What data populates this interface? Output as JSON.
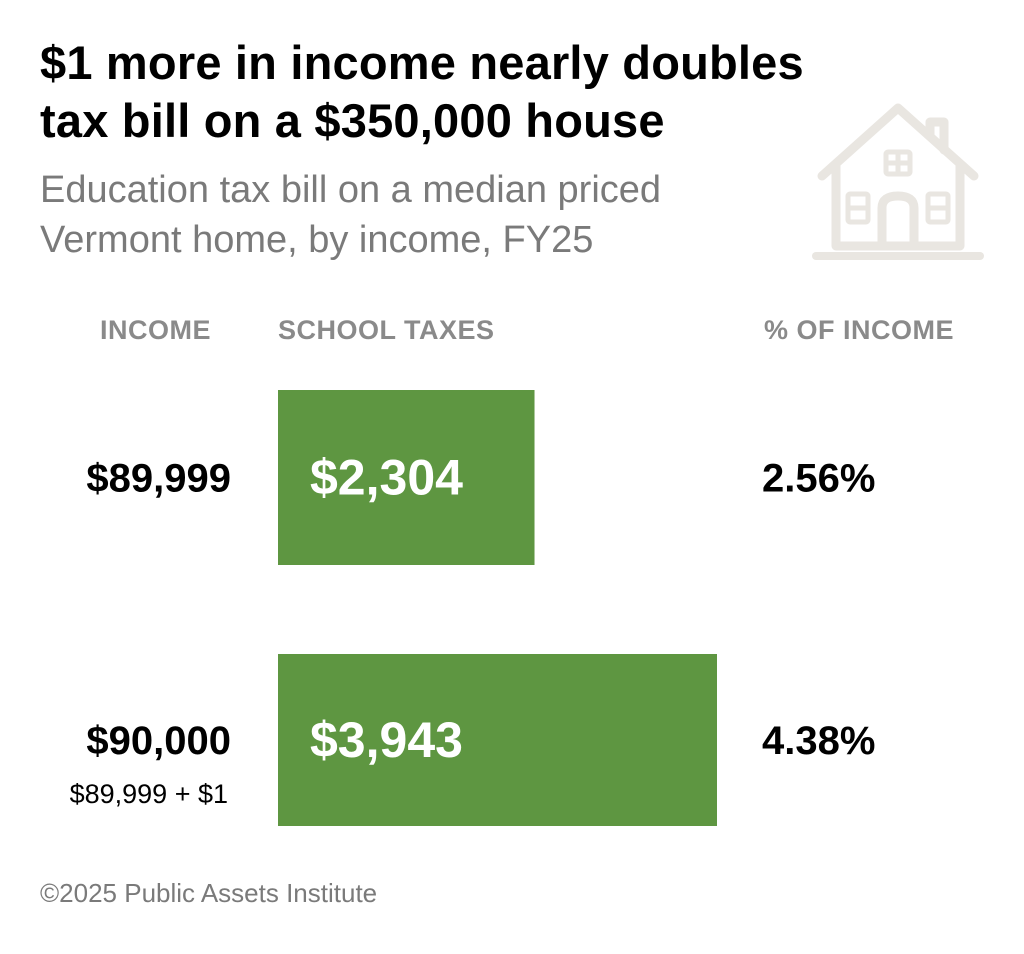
{
  "title_line1": "$1 more in income nearly doubles",
  "title_line2": "tax bill on a $350,000 house",
  "subtitle_line1": "Education tax bill on a median priced",
  "subtitle_line2": "Vermont home, by income, FY25",
  "columns": {
    "income": "INCOME",
    "school_taxes": "SCHOOL TAXES",
    "pct_income": "% OF INCOME"
  },
  "footer": "©2025 Public Assets Institute",
  "icon": "house-icon",
  "colors": {
    "bar": "#5e9641",
    "bar_label": "#ffffff",
    "icon": "#e9e6e1",
    "muted": "#7a7a7a"
  },
  "chart_data": {
    "type": "bar",
    "orientation": "horizontal",
    "categories": [
      "$89,999",
      "$90,000"
    ],
    "category_notes": [
      "",
      "$89,999 + $1"
    ],
    "values": [
      2304,
      3943
    ],
    "value_labels": [
      "$2,304",
      "$3,943"
    ],
    "pct_labels": [
      "2.56%",
      "4.38%"
    ],
    "title": "$1 more in income nearly doubles tax bill on a $350,000 house",
    "xlabel": "SCHOOL TAXES",
    "ylabel": "INCOME"
  }
}
